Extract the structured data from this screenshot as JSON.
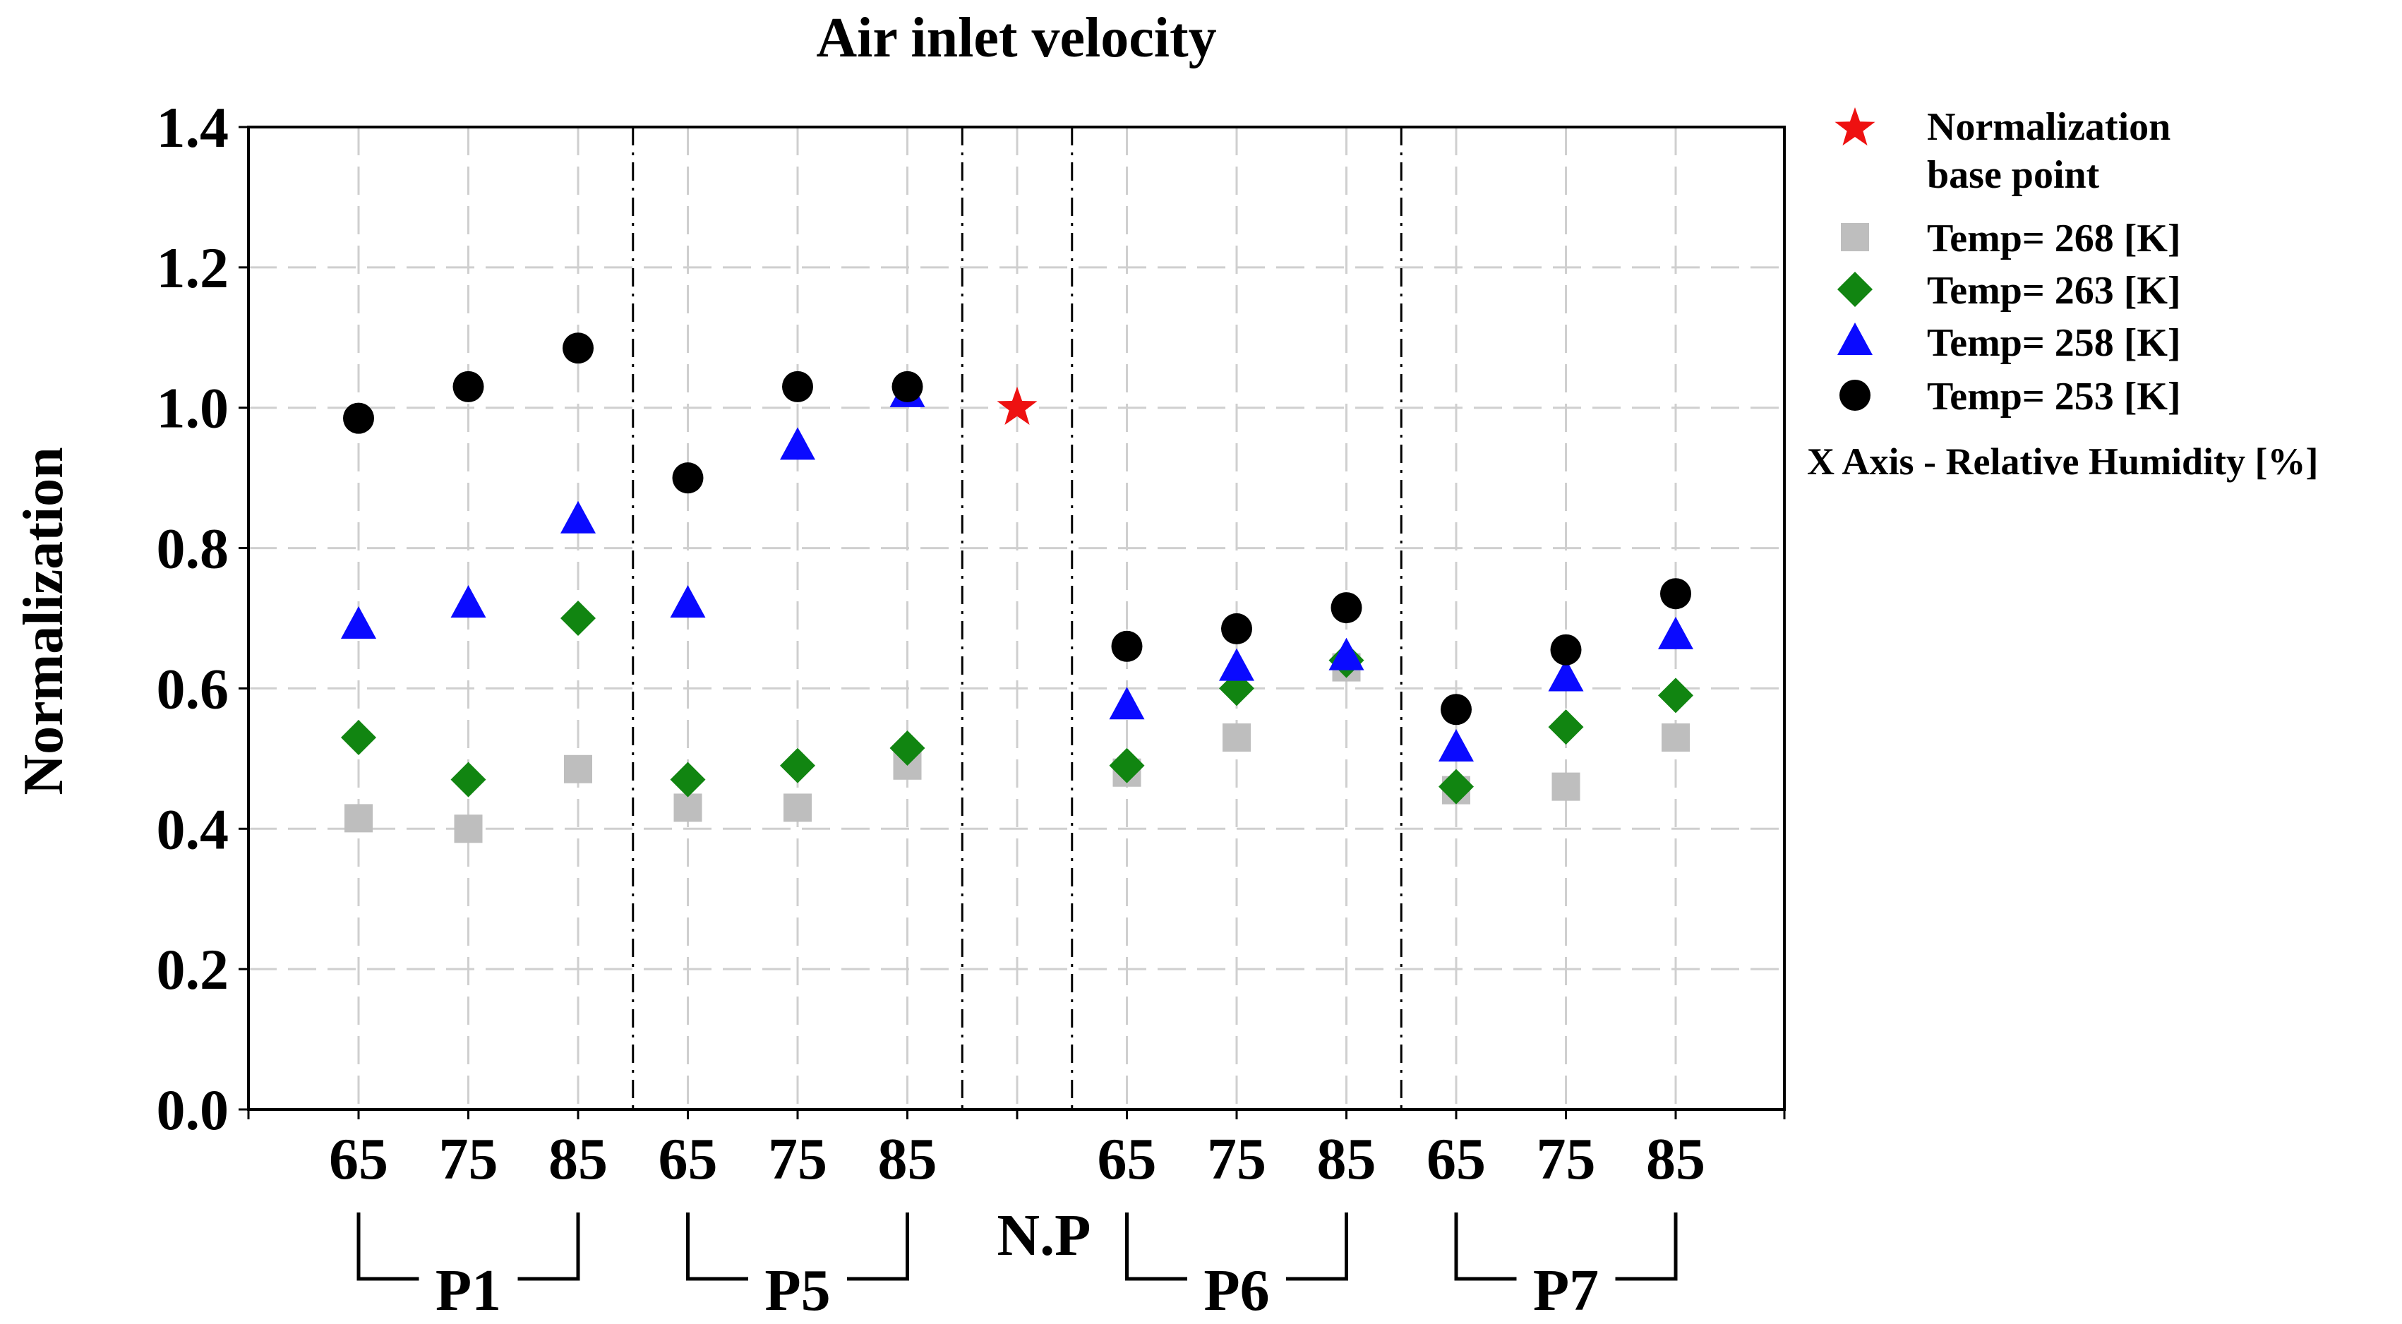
{
  "chart_data": {
    "type": "scatter",
    "title": "Air inlet velocity",
    "ylabel": "Normalization",
    "xlabel": "",
    "ylim": [
      0.0,
      1.4
    ],
    "yticks": [
      "0.0",
      "0.2",
      "0.4",
      "0.6",
      "0.8",
      "1.0",
      "1.2",
      "1.4"
    ],
    "categories": [
      "65",
      "75",
      "85",
      "65",
      "75",
      "85",
      "N.P",
      "65",
      "75",
      "85",
      "65",
      "75",
      "85"
    ],
    "groups": [
      {
        "label": "P1",
        "from": 0,
        "to": 2
      },
      {
        "label": "P5",
        "from": 3,
        "to": 5
      },
      {
        "label": "N.P",
        "from": 6,
        "to": 6
      },
      {
        "label": "P6",
        "from": 7,
        "to": 9
      },
      {
        "label": "P7",
        "from": 10,
        "to": 12
      }
    ],
    "series": [
      {
        "name": "Temp= 268 [K]",
        "marker": "square",
        "color": "#bebebe",
        "values": [
          0.415,
          0.4,
          0.485,
          0.43,
          0.43,
          0.49,
          null,
          0.48,
          0.53,
          0.63,
          0.455,
          0.46,
          0.53
        ]
      },
      {
        "name": "Temp= 263 [K]",
        "marker": "diamond",
        "color": "#118511",
        "values": [
          0.53,
          0.47,
          0.7,
          0.47,
          0.49,
          0.515,
          null,
          0.49,
          0.6,
          0.64,
          0.46,
          0.545,
          0.59
        ]
      },
      {
        "name": "Temp= 258 [K]",
        "marker": "triangle",
        "color": "#0a0aff",
        "values": [
          0.69,
          0.72,
          0.84,
          0.72,
          0.945,
          1.02,
          null,
          0.575,
          0.63,
          0.645,
          0.515,
          0.615,
          0.675
        ]
      },
      {
        "name": "Temp= 253 [K]",
        "marker": "circle",
        "color": "#000000",
        "values": [
          0.985,
          1.03,
          1.085,
          0.9,
          1.03,
          1.03,
          null,
          0.66,
          0.685,
          0.715,
          0.57,
          0.655,
          0.735
        ]
      }
    ],
    "base_point": {
      "label": "Normalization base point",
      "label_lines": [
        "Normalization",
        "base point"
      ],
      "category": "N.P",
      "value": 1.0,
      "marker": "star",
      "color": "#ee1111"
    },
    "legend": {
      "position": "right",
      "note": "X  Axis - Relative Humidity [%]"
    },
    "grid": true
  }
}
